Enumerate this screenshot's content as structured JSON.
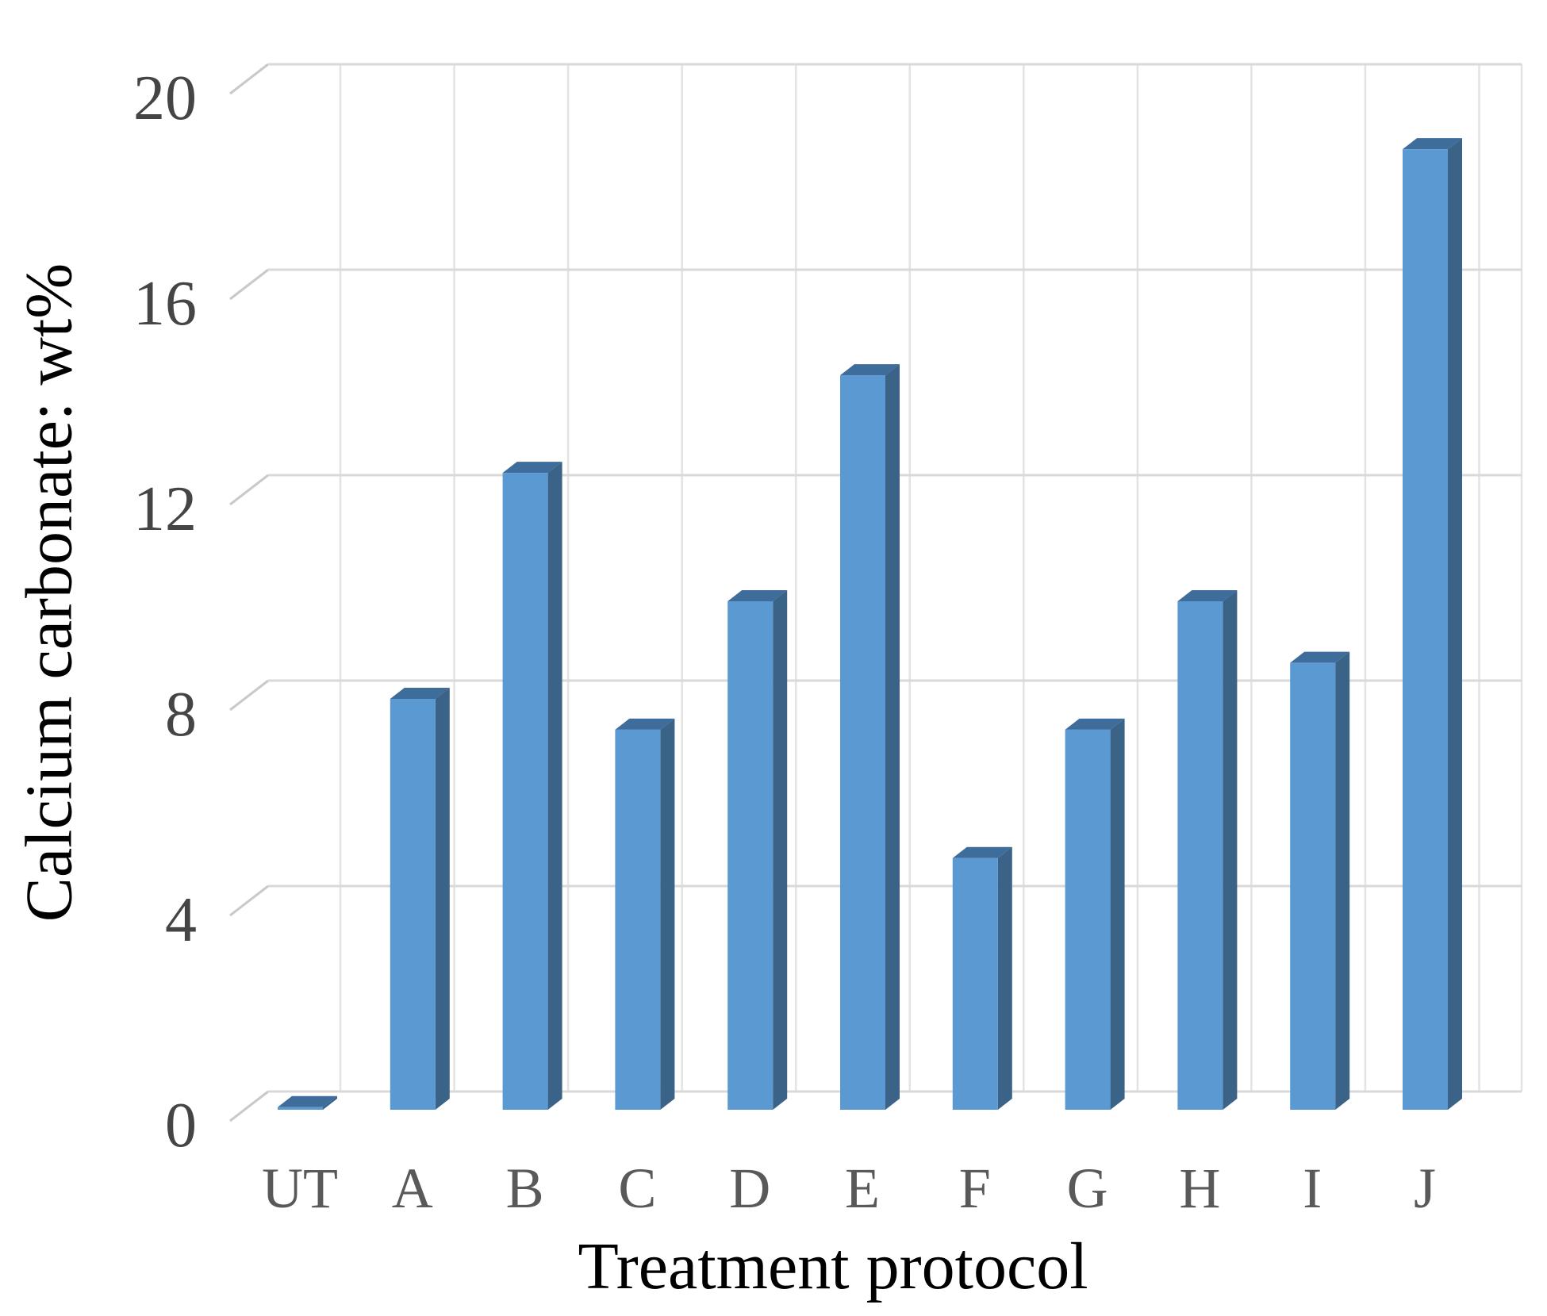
{
  "chart_data": {
    "type": "bar",
    "style": "3d-column",
    "title": "",
    "xlabel": "Treatment protocol",
    "ylabel": "Calcium carbonate: wt%",
    "categories": [
      "UT",
      "A",
      "B",
      "C",
      "D",
      "E",
      "F",
      "G",
      "H",
      "I",
      "J"
    ],
    "values": [
      0.05,
      8.0,
      12.4,
      7.4,
      9.9,
      14.3,
      4.9,
      7.4,
      9.9,
      8.7,
      18.7
    ],
    "yticks": [
      0,
      4,
      8,
      12,
      16,
      20
    ],
    "ylim": [
      0,
      20
    ],
    "grid": true,
    "legend": "none",
    "colors": {
      "bar_front": "#5B99D3",
      "bar_side": "#3B6387",
      "bar_top": "#3E6C9B",
      "gridline": "#D9D9D9",
      "grid_tick_diagonal": "#C9C9C9",
      "vertical_gridline": "#E3E3E3",
      "ytick_label": "#454545",
      "xcat_label": "#595959",
      "axis_title": "#000000"
    }
  }
}
